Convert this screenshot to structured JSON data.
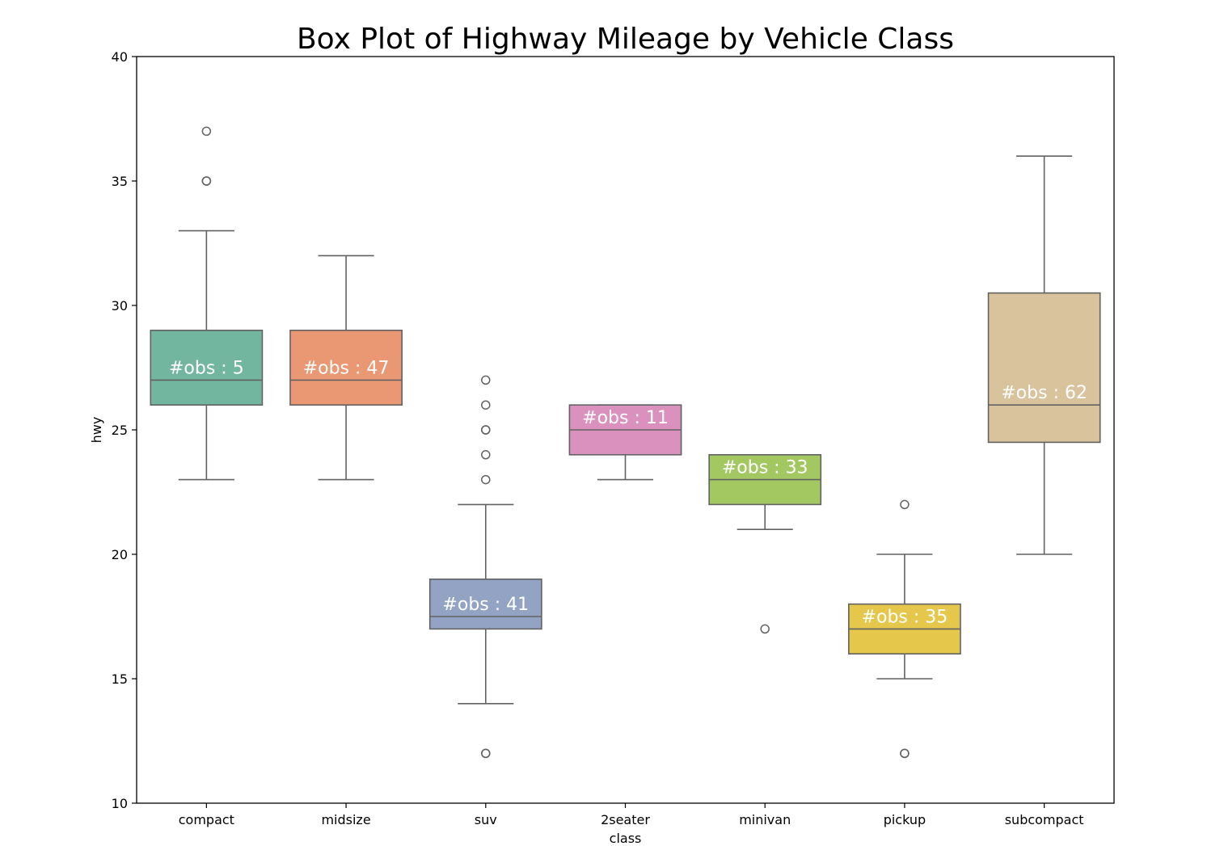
{
  "chart_data": {
    "type": "box",
    "title": "Box Plot of Highway Mileage by Vehicle Class",
    "xlabel": "class",
    "ylabel": "hwy",
    "ylim": [
      10,
      40
    ],
    "yticks": [
      10,
      15,
      20,
      25,
      30,
      35,
      40
    ],
    "grid": false,
    "categories": [
      "compact",
      "midsize",
      "suv",
      "2seater",
      "minivan",
      "pickup",
      "subcompact"
    ],
    "boxes": [
      {
        "category": "compact",
        "color": "#73b6a0",
        "whisker_low": 23,
        "q1": 26,
        "median": 27,
        "q3": 29,
        "whisker_high": 33,
        "outliers": [
          35,
          35,
          37
        ],
        "annotation": "#obs : 5"
      },
      {
        "category": "midsize",
        "color": "#ea9774",
        "whisker_low": 23,
        "q1": 26,
        "median": 27,
        "q3": 29,
        "whisker_high": 32,
        "outliers": [],
        "annotation": "#obs : 47"
      },
      {
        "category": "suv",
        "color": "#93a3c4",
        "whisker_low": 14,
        "q1": 17,
        "median": 17.5,
        "q3": 19,
        "whisker_high": 22,
        "outliers": [
          12,
          12,
          23,
          24,
          25,
          25,
          26,
          27
        ],
        "annotation": "#obs : 41"
      },
      {
        "category": "2seater",
        "color": "#da91be",
        "whisker_low": 23,
        "q1": 24,
        "median": 25,
        "q3": 26,
        "whisker_high": 26,
        "outliers": [],
        "annotation": "#obs : 11"
      },
      {
        "category": "minivan",
        "color": "#a3c862",
        "whisker_low": 21,
        "q1": 22,
        "median": 23,
        "q3": 24,
        "whisker_high": 24,
        "outliers": [
          17
        ],
        "annotation": "#obs : 33"
      },
      {
        "category": "pickup",
        "color": "#e5c74b",
        "whisker_low": 15,
        "q1": 16,
        "median": 17,
        "q3": 18,
        "whisker_high": 20,
        "outliers": [
          12,
          12,
          22
        ],
        "annotation": "#obs : 35"
      },
      {
        "category": "subcompact",
        "color": "#d9c39c",
        "whisker_low": 20,
        "q1": 24.5,
        "median": 26,
        "q3": 30.5,
        "whisker_high": 36,
        "outliers": [],
        "annotation": "#obs : 62"
      }
    ],
    "line_color": "#626262",
    "annotation_color": "#ffffff"
  }
}
